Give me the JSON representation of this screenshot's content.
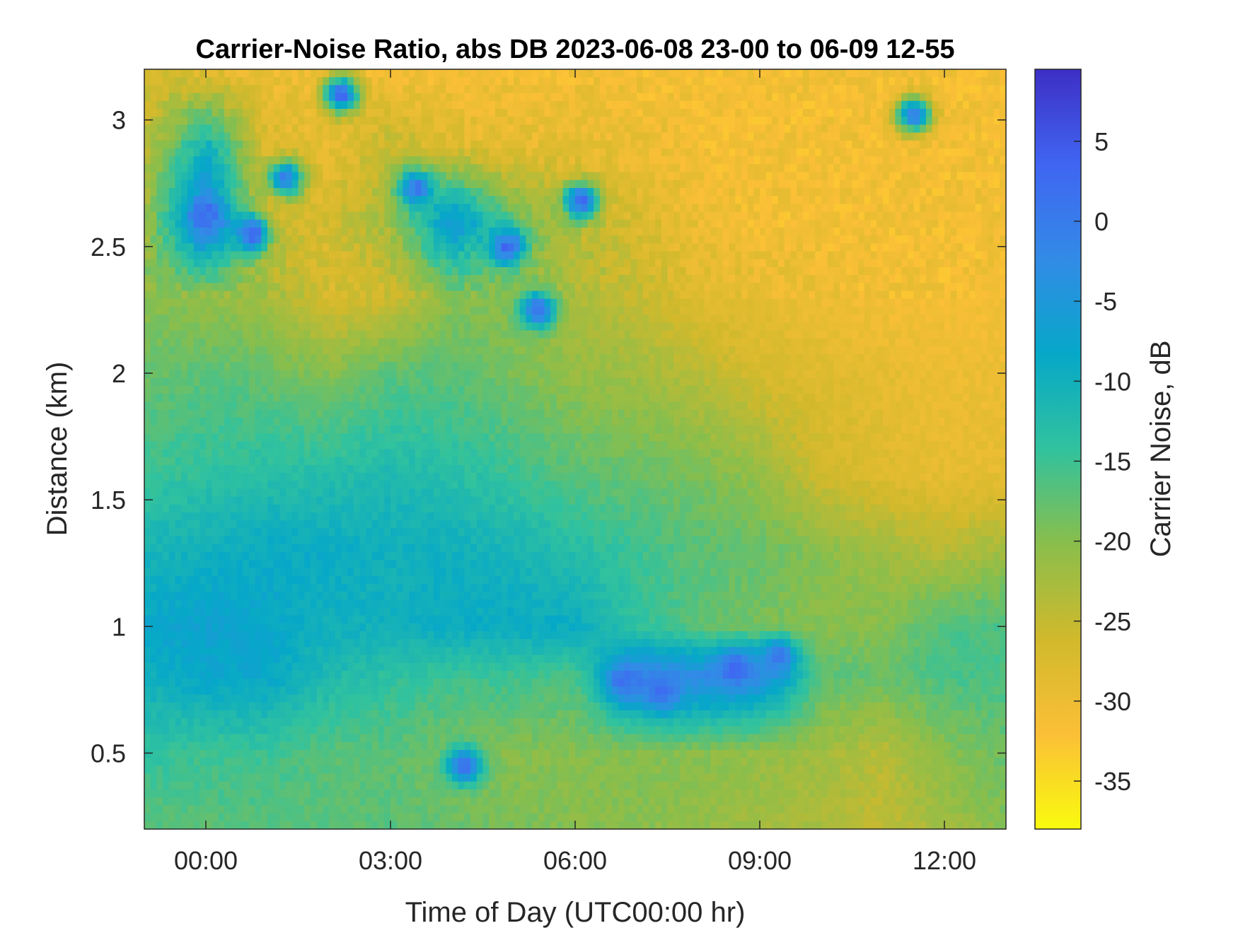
{
  "chart_data": {
    "type": "heatmap",
    "title": "Carrier-Noise Ratio, abs DB 2023-06-08 23-00 to 06-09 12-55",
    "xlabel": "Time of Day (UTC00:00 hr)",
    "ylabel": "Distance (km)",
    "colorbar_label": "Carrier Noise, dB",
    "x_range_hours": [
      -1.0,
      13.0
    ],
    "y_range_km": [
      0.2,
      3.2
    ],
    "color_range_db": [
      -38,
      9.5
    ],
    "x_ticks": [
      {
        "value": 0,
        "label": "00:00"
      },
      {
        "value": 3,
        "label": "03:00"
      },
      {
        "value": 6,
        "label": "06:00"
      },
      {
        "value": 9,
        "label": "09:00"
      },
      {
        "value": 12,
        "label": "12:00"
      }
    ],
    "y_ticks": [
      {
        "value": 0.5,
        "label": "0.5"
      },
      {
        "value": 1,
        "label": "1"
      },
      {
        "value": 1.5,
        "label": "1.5"
      },
      {
        "value": 2,
        "label": "2"
      },
      {
        "value": 2.5,
        "label": "2.5"
      },
      {
        "value": 3,
        "label": "3"
      }
    ],
    "colorbar_ticks": [
      {
        "value": 5,
        "label": "5"
      },
      {
        "value": 0,
        "label": "0"
      },
      {
        "value": -5,
        "label": "-5"
      },
      {
        "value": -10,
        "label": "-10"
      },
      {
        "value": -15,
        "label": "-15"
      },
      {
        "value": -20,
        "label": "-20"
      },
      {
        "value": -25,
        "label": "-25"
      },
      {
        "value": -30,
        "label": "-30"
      },
      {
        "value": -35,
        "label": "-35"
      }
    ],
    "colormap": [
      "#f9fb0e",
      "#fbbf37",
      "#d1b92c",
      "#8abe4b",
      "#31c29e",
      "#06a8c8",
      "#328be6",
      "#4065f2",
      "#3d2fc4"
    ],
    "grid": false,
    "field_keypoints": {
      "columns_hours": [
        -1,
        0,
        1,
        2,
        3,
        4,
        5,
        6,
        7,
        8,
        9,
        10,
        11,
        12,
        13
      ],
      "rows_km": [
        0.2,
        0.5,
        0.8,
        1.0,
        1.3,
        1.6,
        2.0,
        2.3,
        2.6,
        2.9,
        3.2
      ],
      "values_db": [
        [
          -17,
          -17,
          -17,
          -17,
          -17,
          -18,
          -19,
          -20,
          -20,
          -21,
          -22,
          -23,
          -25,
          -22,
          -20
        ],
        [
          -14,
          -15,
          -15,
          -17,
          -17,
          -19,
          -20,
          -20,
          -20,
          -20,
          -21,
          -22,
          -24,
          -20,
          -18
        ],
        [
          -10,
          -8,
          -8,
          -12,
          -14,
          -15,
          -15,
          -16,
          -2,
          -2,
          -3,
          -17,
          -18,
          -16,
          -16
        ],
        [
          -8,
          -7,
          -8,
          -10,
          -10,
          -9,
          -9,
          -9,
          -14,
          -17,
          -19,
          -20,
          -20,
          -16,
          -16
        ],
        [
          -11,
          -10,
          -9,
          -9,
          -10,
          -10,
          -11,
          -13,
          -15,
          -17,
          -18,
          -20,
          -22,
          -24,
          -22
        ],
        [
          -15,
          -14,
          -13,
          -13,
          -12,
          -13,
          -15,
          -17,
          -18,
          -19,
          -21,
          -26,
          -28,
          -29,
          -29
        ],
        [
          -18,
          -17,
          -18,
          -20,
          -17,
          -17,
          -19,
          -21,
          -22,
          -24,
          -27,
          -28,
          -29,
          -30,
          -30
        ],
        [
          -20,
          -21,
          -22,
          -27,
          -26,
          -20,
          -20,
          -23,
          -25,
          -28,
          -29,
          -30,
          -31,
          -31,
          -31
        ],
        [
          -22,
          0,
          -26,
          -27,
          -22,
          -4,
          -18,
          -24,
          -27,
          -30,
          -31,
          -31,
          -31,
          -31,
          -31
        ],
        [
          -25,
          -10,
          -28,
          -29,
          -25,
          -28,
          -29,
          -29,
          -30,
          -31,
          -31,
          -31,
          -31,
          -31,
          -31
        ],
        [
          -27,
          -29,
          -30,
          -30,
          -31,
          -31,
          -31,
          -31,
          -31,
          -31,
          -31,
          -31,
          -31,
          -31,
          -31
        ]
      ]
    },
    "strong_features": [
      {
        "t_hours": 0.0,
        "d_km": 2.62,
        "db": 2
      },
      {
        "t_hours": 0.75,
        "d_km": 2.55,
        "db": 4
      },
      {
        "t_hours": 1.3,
        "d_km": 2.77,
        "db": 0
      },
      {
        "t_hours": 2.2,
        "d_km": 3.1,
        "db": 3
      },
      {
        "t_hours": 3.4,
        "d_km": 2.73,
        "db": 1
      },
      {
        "t_hours": 4.9,
        "d_km": 2.5,
        "db": 3
      },
      {
        "t_hours": 5.4,
        "d_km": 2.25,
        "db": 2
      },
      {
        "t_hours": 6.1,
        "d_km": 2.68,
        "db": 3
      },
      {
        "t_hours": 6.8,
        "d_km": 0.78,
        "db": 2
      },
      {
        "t_hours": 7.4,
        "d_km": 0.74,
        "db": 2
      },
      {
        "t_hours": 8.6,
        "d_km": 0.84,
        "db": 3
      },
      {
        "t_hours": 9.3,
        "d_km": 0.88,
        "db": 1
      },
      {
        "t_hours": 4.2,
        "d_km": 0.45,
        "db": 2
      },
      {
        "t_hours": 11.5,
        "d_km": 3.02,
        "db": 0
      }
    ]
  }
}
